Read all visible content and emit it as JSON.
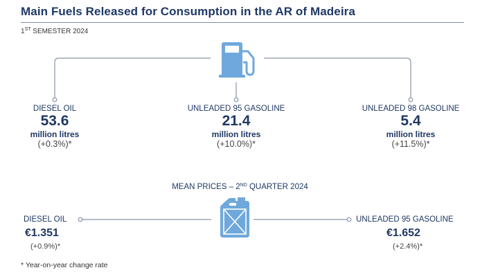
{
  "header": {
    "title": "Main Fuels Released for Consumption in the AR of Madeira",
    "subtitle_prefix": "1",
    "subtitle_sup": "ST",
    "subtitle_rest": " SEMESTER 2024"
  },
  "consumption": [
    {
      "label": "DIESEL OIL",
      "value": "53.6",
      "unit": "million litres",
      "change": "(+0.3%)*"
    },
    {
      "label": "UNLEADED 95 GASOLINE",
      "value": "21.4",
      "unit": "million litres",
      "change": "(+10.0%)*"
    },
    {
      "label": "UNLEADED 98 GASOLINE",
      "value": "5.4",
      "unit": "million litres",
      "change": "(+11.5%)*"
    }
  ],
  "mean_prices": {
    "title_prefix": "MEAN PRICES – 2",
    "title_sup": "ND",
    "title_rest": " QUARTER 2024",
    "items": [
      {
        "label": "DIESEL OIL",
        "price": "€1.351",
        "change": "(+0.9%)*"
      },
      {
        "label": "UNLEADED 95 GASOLINE",
        "price": "€1.652",
        "change": "(+2.4%)*"
      }
    ]
  },
  "footnote": "* Year-on-year change rate",
  "icons": [
    "fuel-pump-icon",
    "jerrycan-icon"
  ],
  "colors": {
    "navy": "#1f3864",
    "icon_blue": "#6fa8dc",
    "line_gray": "#8a93a6"
  }
}
